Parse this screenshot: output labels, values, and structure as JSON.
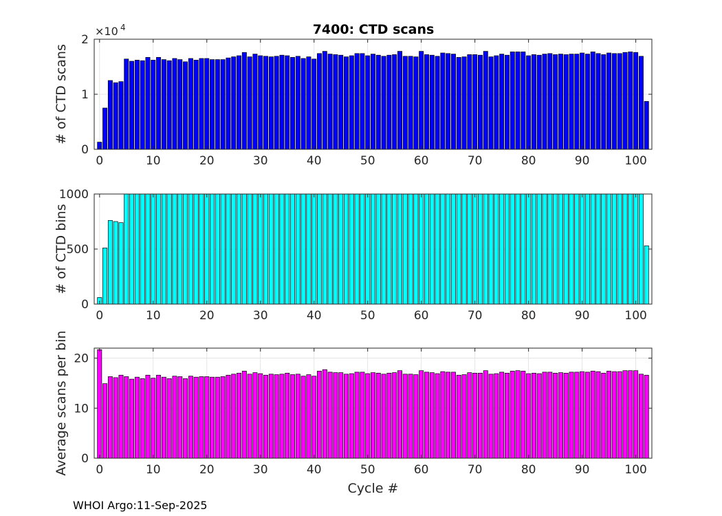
{
  "figure": {
    "title": "7400: CTD scans",
    "footer": "WHOI Argo:11-Sep-2025"
  },
  "chart_data": [
    {
      "type": "bar",
      "title": "7400: CTD scans",
      "xlabel": "",
      "ylabel": "# of CTD scans",
      "exponent_label": "×10",
      "exponent_power": "4",
      "xlim": [
        -1,
        103
      ],
      "ylim": [
        0,
        20000
      ],
      "xticks": [
        0,
        10,
        20,
        30,
        40,
        50,
        60,
        70,
        80,
        90,
        100
      ],
      "yticks": [
        0,
        10000,
        20000
      ],
      "ytick_labels": [
        "0",
        "1",
        "2"
      ],
      "grid": true,
      "color": "#0000ff",
      "x": [
        0,
        1,
        2,
        3,
        4,
        5,
        6,
        7,
        8,
        9,
        10,
        11,
        12,
        13,
        14,
        15,
        16,
        17,
        18,
        19,
        20,
        21,
        22,
        23,
        24,
        25,
        26,
        27,
        28,
        29,
        30,
        31,
        32,
        33,
        34,
        35,
        36,
        37,
        38,
        39,
        40,
        41,
        42,
        43,
        44,
        45,
        46,
        47,
        48,
        49,
        50,
        51,
        52,
        53,
        54,
        55,
        56,
        57,
        58,
        59,
        60,
        61,
        62,
        63,
        64,
        65,
        66,
        67,
        68,
        69,
        70,
        71,
        72,
        73,
        74,
        75,
        76,
        77,
        78,
        79,
        80,
        81,
        82,
        83,
        84,
        85,
        86,
        87,
        88,
        89,
        90,
        91,
        92,
        93,
        94,
        95,
        96,
        97,
        98,
        99,
        100,
        101,
        102
      ],
      "values": [
        1300,
        7500,
        12500,
        12100,
        12300,
        16400,
        16000,
        16200,
        16100,
        16700,
        16200,
        16700,
        16300,
        16100,
        16500,
        16300,
        15900,
        16500,
        16200,
        16500,
        16500,
        16300,
        16300,
        16300,
        16600,
        16800,
        17000,
        17600,
        16800,
        17300,
        17000,
        16900,
        16800,
        16900,
        17100,
        17000,
        16700,
        16900,
        16500,
        16800,
        16400,
        17400,
        17800,
        17300,
        17200,
        17100,
        16800,
        17000,
        17400,
        17400,
        17000,
        17300,
        17100,
        16900,
        17100,
        17200,
        17800,
        16900,
        16900,
        16800,
        17800,
        17200,
        17100,
        16900,
        17500,
        17400,
        17300,
        16700,
        16800,
        17200,
        17200,
        17100,
        17800,
        16800,
        17000,
        17300,
        17100,
        17700,
        17700,
        17700,
        17000,
        17200,
        17100,
        17300,
        17400,
        17200,
        17300,
        17200,
        17300,
        17300,
        17500,
        17300,
        17700,
        17400,
        17200,
        17500,
        17400,
        17400,
        17600,
        17700,
        17600,
        16900,
        8700
      ]
    },
    {
      "type": "bar",
      "title": "",
      "xlabel": "",
      "ylabel": "# of CTD bins",
      "xlim": [
        -1,
        103
      ],
      "ylim": [
        0,
        1000
      ],
      "xticks": [
        0,
        10,
        20,
        30,
        40,
        50,
        60,
        70,
        80,
        90,
        100
      ],
      "yticks": [
        0,
        500,
        1000
      ],
      "ytick_labels": [
        "0",
        "500",
        "1000"
      ],
      "grid": true,
      "color": "#00ffff",
      "x": [
        0,
        1,
        2,
        3,
        4,
        5,
        6,
        7,
        8,
        9,
        10,
        11,
        12,
        13,
        14,
        15,
        16,
        17,
        18,
        19,
        20,
        21,
        22,
        23,
        24,
        25,
        26,
        27,
        28,
        29,
        30,
        31,
        32,
        33,
        34,
        35,
        36,
        37,
        38,
        39,
        40,
        41,
        42,
        43,
        44,
        45,
        46,
        47,
        48,
        49,
        50,
        51,
        52,
        53,
        54,
        55,
        56,
        57,
        58,
        59,
        60,
        61,
        62,
        63,
        64,
        65,
        66,
        67,
        68,
        69,
        70,
        71,
        72,
        73,
        74,
        75,
        76,
        77,
        78,
        79,
        80,
        81,
        82,
        83,
        84,
        85,
        86,
        87,
        88,
        89,
        90,
        91,
        92,
        93,
        94,
        95,
        96,
        97,
        98,
        99,
        100,
        101,
        102
      ],
      "values": [
        60,
        510,
        760,
        750,
        740,
        1000,
        1000,
        1000,
        1000,
        1000,
        1000,
        1000,
        1000,
        1000,
        1000,
        1000,
        1000,
        1000,
        1000,
        1000,
        1000,
        1000,
        1000,
        1000,
        1000,
        1000,
        1000,
        1000,
        1000,
        1000,
        1000,
        1000,
        1000,
        1000,
        1000,
        1000,
        1000,
        1000,
        1000,
        1000,
        1000,
        1000,
        1000,
        1000,
        1000,
        1000,
        1000,
        1000,
        1000,
        1000,
        1000,
        1000,
        1000,
        1000,
        1000,
        1000,
        1000,
        1000,
        1000,
        1000,
        1000,
        1000,
        1000,
        1000,
        1000,
        1000,
        1000,
        1000,
        1000,
        1000,
        1000,
        1000,
        1000,
        1000,
        1000,
        1000,
        1000,
        1000,
        1000,
        1000,
        1000,
        1000,
        1000,
        1000,
        1000,
        1000,
        1000,
        1000,
        1000,
        1000,
        1000,
        1000,
        1000,
        1000,
        1000,
        1000,
        1000,
        1000,
        1000,
        1000,
        1000,
        1000,
        530
      ]
    },
    {
      "type": "bar",
      "title": "",
      "xlabel": "Cycle #",
      "ylabel": "Average scans per bin",
      "xlim": [
        -1,
        103
      ],
      "ylim": [
        0,
        22
      ],
      "xticks": [
        0,
        10,
        20,
        30,
        40,
        50,
        60,
        70,
        80,
        90,
        100
      ],
      "yticks": [
        0,
        10,
        20
      ],
      "ytick_labels": [
        "0",
        "10",
        "20"
      ],
      "grid": true,
      "color": "#ff00ff",
      "x": [
        0,
        1,
        2,
        3,
        4,
        5,
        6,
        7,
        8,
        9,
        10,
        11,
        12,
        13,
        14,
        15,
        16,
        17,
        18,
        19,
        20,
        21,
        22,
        23,
        24,
        25,
        26,
        27,
        28,
        29,
        30,
        31,
        32,
        33,
        34,
        35,
        36,
        37,
        38,
        39,
        40,
        41,
        42,
        43,
        44,
        45,
        46,
        47,
        48,
        49,
        50,
        51,
        52,
        53,
        54,
        55,
        56,
        57,
        58,
        59,
        60,
        61,
        62,
        63,
        64,
        65,
        66,
        67,
        68,
        69,
        70,
        71,
        72,
        73,
        74,
        75,
        76,
        77,
        78,
        79,
        80,
        81,
        82,
        83,
        84,
        85,
        86,
        87,
        88,
        89,
        90,
        91,
        92,
        93,
        94,
        95,
        96,
        97,
        98,
        99,
        100,
        101,
        102
      ],
      "values": [
        21.7,
        14.9,
        16.3,
        16.1,
        16.6,
        16.3,
        15.8,
        16.2,
        15.9,
        16.6,
        16.0,
        16.6,
        16.2,
        15.9,
        16.4,
        16.3,
        15.9,
        16.4,
        16.2,
        16.3,
        16.3,
        16.2,
        16.2,
        16.3,
        16.6,
        16.8,
        17.0,
        17.4,
        16.8,
        17.1,
        16.9,
        16.6,
        16.8,
        16.7,
        16.8,
        17.0,
        16.7,
        16.8,
        16.4,
        16.7,
        16.4,
        17.4,
        17.7,
        17.2,
        17.1,
        17.1,
        16.8,
        16.9,
        17.2,
        17.2,
        16.9,
        17.1,
        17.0,
        16.8,
        17.0,
        17.1,
        17.5,
        16.8,
        16.8,
        16.7,
        17.5,
        17.2,
        17.1,
        16.9,
        17.3,
        17.2,
        17.2,
        16.6,
        16.7,
        17.1,
        17.0,
        17.0,
        17.5,
        16.8,
        16.9,
        17.2,
        17.0,
        17.4,
        17.5,
        17.4,
        16.9,
        17.0,
        16.9,
        17.2,
        17.2,
        17.0,
        17.1,
        17.0,
        17.2,
        17.2,
        17.3,
        17.2,
        17.4,
        17.3,
        17.0,
        17.4,
        17.3,
        17.3,
        17.5,
        17.5,
        17.5,
        16.8,
        16.6
      ]
    }
  ]
}
